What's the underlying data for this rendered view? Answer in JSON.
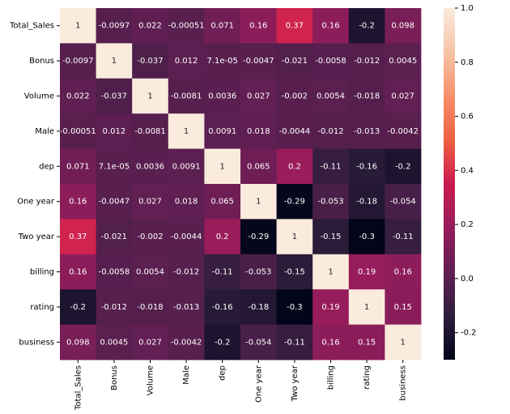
{
  "chart_data": {
    "type": "heatmap",
    "categories": [
      "Total_Sales",
      "Bonus",
      "Volume",
      "Male",
      "dep",
      "One year",
      "Two year",
      "billing",
      "rating",
      "business"
    ],
    "series": [
      {
        "name": "Total_Sales",
        "values": [
          1,
          -0.0097,
          0.022,
          -0.00051,
          0.071,
          0.16,
          0.37,
          0.16,
          -0.2,
          0.098
        ]
      },
      {
        "name": "Bonus",
        "values": [
          -0.0097,
          1,
          -0.037,
          0.012,
          7.1e-05,
          -0.0047,
          -0.021,
          -0.0058,
          -0.012,
          0.0045
        ],
        "value_labels": [
          "-0.0097",
          "1",
          "-0.037",
          "0.012",
          "7.1e-05",
          "-0.0047",
          "-0.021",
          "-0.0058",
          "-0.012",
          "0.0045"
        ]
      },
      {
        "name": "Volume",
        "values": [
          0.022,
          -0.037,
          1,
          -0.0081,
          0.0036,
          0.027,
          -0.002,
          0.0054,
          -0.018,
          0.027
        ]
      },
      {
        "name": "Male",
        "values": [
          -0.00051,
          0.012,
          -0.0081,
          1,
          0.0091,
          0.018,
          -0.0044,
          -0.012,
          -0.013,
          -0.0042
        ]
      },
      {
        "name": "dep",
        "values": [
          0.071,
          7.1e-05,
          0.0036,
          0.0091,
          1,
          0.065,
          0.2,
          -0.11,
          -0.16,
          -0.2
        ],
        "value_labels": [
          "0.071",
          "7.1e-05",
          "0.0036",
          "0.0091",
          "1",
          "0.065",
          "0.2",
          "-0.11",
          "-0.16",
          "-0.2"
        ]
      },
      {
        "name": "One year",
        "values": [
          0.16,
          -0.0047,
          0.027,
          0.018,
          0.065,
          1,
          -0.29,
          -0.053,
          -0.18,
          -0.054
        ]
      },
      {
        "name": "Two year",
        "values": [
          0.37,
          -0.021,
          -0.002,
          -0.0044,
          0.2,
          -0.29,
          1,
          -0.15,
          -0.3,
          -0.11
        ]
      },
      {
        "name": "billing",
        "values": [
          0.16,
          -0.0058,
          0.0054,
          -0.012,
          -0.11,
          -0.053,
          -0.15,
          1,
          0.19,
          0.16
        ]
      },
      {
        "name": "rating",
        "values": [
          -0.2,
          -0.012,
          -0.018,
          -0.013,
          -0.16,
          -0.18,
          -0.3,
          0.19,
          1,
          0.15
        ]
      },
      {
        "name": "business",
        "values": [
          0.098,
          0.0045,
          0.027,
          -0.0042,
          -0.2,
          -0.054,
          -0.11,
          0.16,
          0.15,
          1
        ]
      }
    ],
    "zlim": [
      -0.3,
      1
    ],
    "zticks": [
      -0.2,
      {
        "value": 0,
        "label": "0.0"
      },
      0.2,
      0.4,
      0.6,
      0.8,
      {
        "value": 1,
        "label": "1.0"
      }
    ],
    "colorscale": [
      "#03051a",
      "#2e1e3c",
      "#611f53",
      "#961c5b",
      "#cb1b4f",
      "#f06043",
      "#f6906a",
      "#f6c4a6",
      "#faebdd"
    ]
  }
}
